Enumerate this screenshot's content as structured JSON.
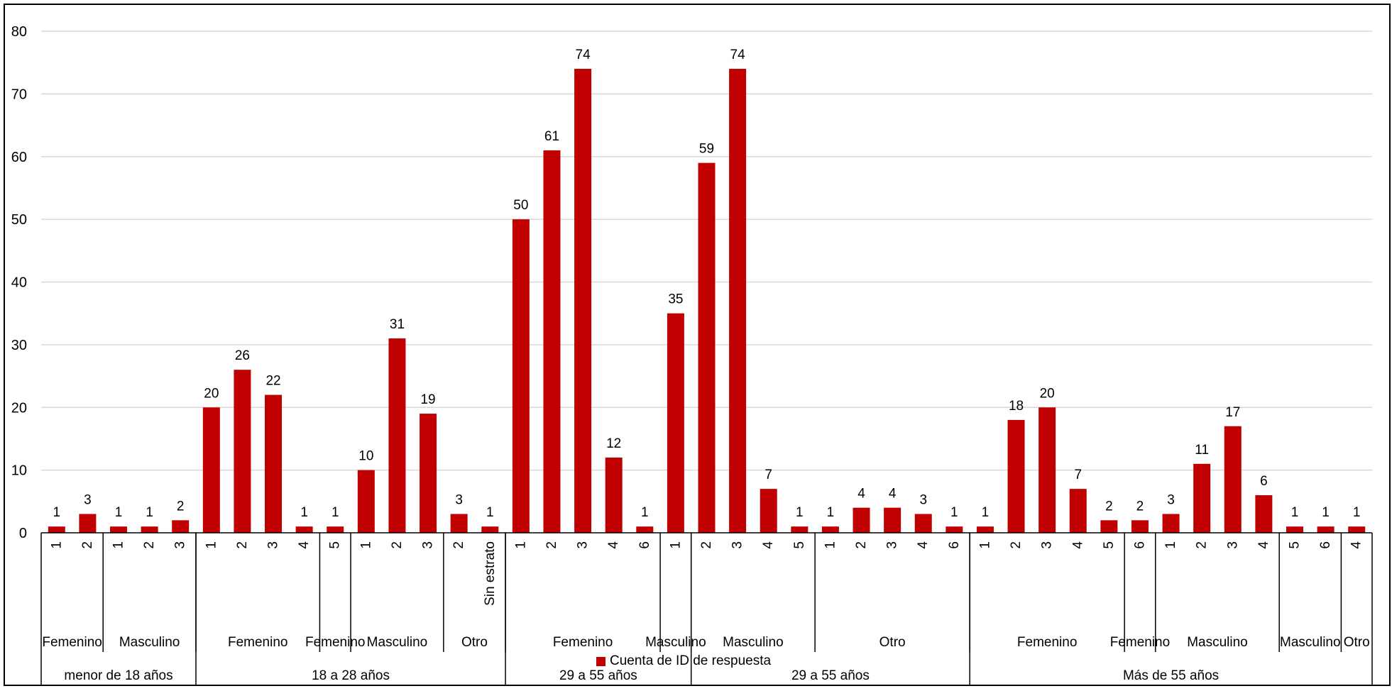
{
  "chart_data": {
    "type": "bar",
    "ylim": [
      0,
      80
    ],
    "yticks": [
      0,
      10,
      20,
      30,
      40,
      50,
      60,
      70,
      80
    ],
    "grid": true,
    "legend_position": "bottom",
    "colors": {
      "bar": "#C00000",
      "grid": "#D9D9D9",
      "axis": "#000000"
    },
    "series": [
      {
        "name": "Cuenta de ID de respuesta",
        "values": [
          1,
          3,
          1,
          1,
          2,
          20,
          26,
          22,
          1,
          1,
          10,
          31,
          19,
          3,
          1,
          50,
          61,
          74,
          12,
          1,
          35,
          59,
          74,
          7,
          1,
          1,
          4,
          4,
          3,
          1,
          1,
          18,
          20,
          7,
          2,
          2,
          3,
          11,
          17,
          6,
          1,
          1,
          1
        ]
      }
    ],
    "categories": [
      "1",
      "2",
      "1",
      "2",
      "3",
      "1",
      "2",
      "3",
      "4",
      "5",
      "1",
      "2",
      "3",
      "2",
      "Sin estrato",
      "1",
      "2",
      "3",
      "4",
      "6",
      "1",
      "2",
      "3",
      "4",
      "5",
      "1",
      "2",
      "3",
      "4",
      "6",
      "1",
      "2",
      "3",
      "4",
      "5",
      "6",
      "1",
      "2",
      "3",
      "4",
      "5",
      "6",
      "4"
    ],
    "gender_groups": [
      {
        "label": "Femenino",
        "count": 2
      },
      {
        "label": "Masculino",
        "count": 3
      },
      {
        "label": "Femenino",
        "count": 4
      },
      {
        "label": "Femenino",
        "count": 1
      },
      {
        "label": "Masculino",
        "count": 3
      },
      {
        "label": "Otro",
        "count": 2
      },
      {
        "label": "Femenino",
        "count": 5
      },
      {
        "label": "Masculino",
        "count": 1
      },
      {
        "label": "Masculino",
        "count": 4
      },
      {
        "label": "Otro",
        "count": 5
      },
      {
        "label": "Femenino",
        "count": 5
      },
      {
        "label": "Femenino",
        "count": 1
      },
      {
        "label": "Masculino",
        "count": 4
      },
      {
        "label": "Masculino",
        "count": 2
      },
      {
        "label": "Otro",
        "count": 1
      }
    ],
    "age_groups": [
      {
        "label": "menor de 18 años",
        "count": 5
      },
      {
        "label": "18 a 28 años",
        "count": 10
      },
      {
        "label": "29 a 55 años",
        "count": 6
      },
      {
        "label": "29 a 55 años",
        "count": 9
      },
      {
        "label": "Más de 55 años",
        "count": 13
      }
    ]
  }
}
